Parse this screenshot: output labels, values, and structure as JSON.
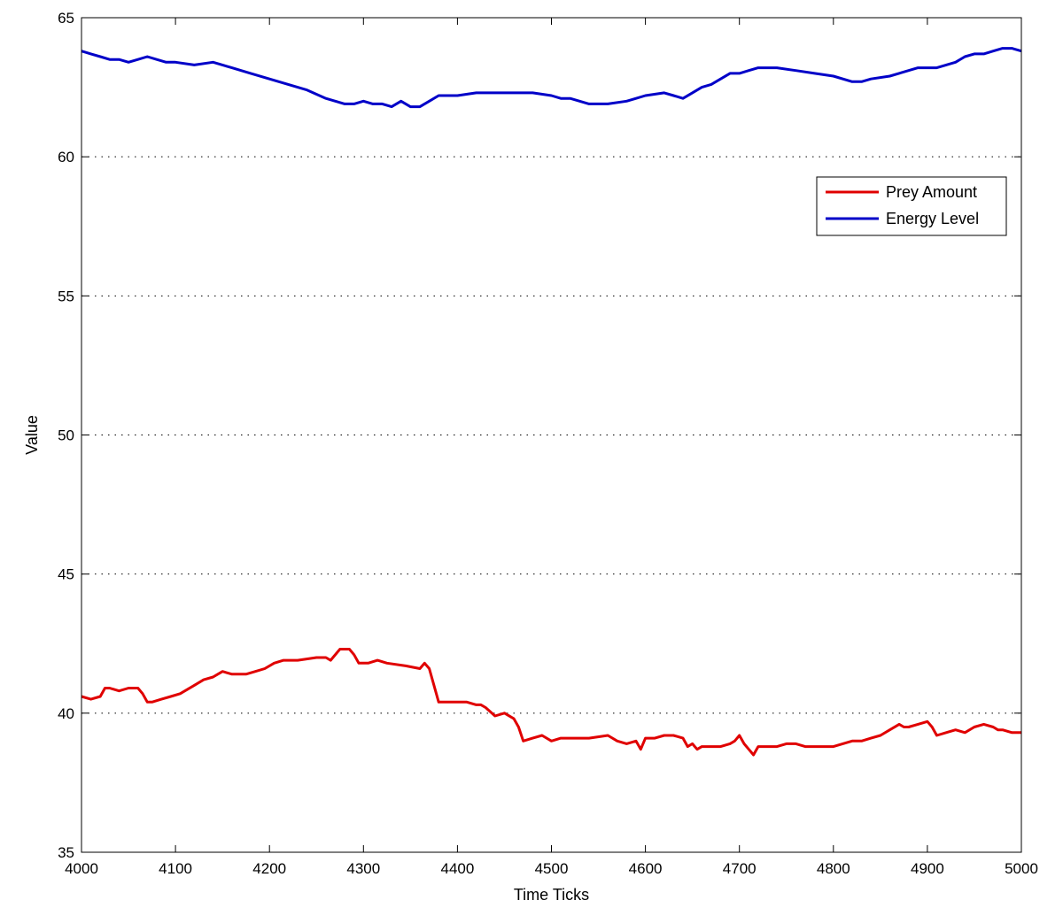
{
  "chart_data": {
    "type": "line",
    "title": "",
    "xlabel": "Time Ticks",
    "ylabel": "Value",
    "xlim": [
      4000,
      5000
    ],
    "ylim": [
      35,
      65
    ],
    "xticks": [
      4000,
      4100,
      4200,
      4300,
      4400,
      4500,
      4600,
      4700,
      4800,
      4900,
      5000
    ],
    "yticks": [
      35,
      40,
      45,
      50,
      55,
      60,
      65
    ],
    "grid": "y-dotted",
    "legend_position": "top-right",
    "colors": {
      "Prey Amount": "#e00000",
      "Energy Level": "#0000c8"
    },
    "series": [
      {
        "name": "Prey Amount",
        "x": [
          4000,
          4010,
          4020,
          4025,
          4030,
          4040,
          4050,
          4060,
          4065,
          4070,
          4075,
          4085,
          4095,
          4105,
          4120,
          4130,
          4140,
          4150,
          4160,
          4175,
          4185,
          4195,
          4205,
          4215,
          4230,
          4250,
          4260,
          4265,
          4275,
          4285,
          4290,
          4295,
          4305,
          4315,
          4325,
          4345,
          4360,
          4365,
          4370,
          4380,
          4395,
          4410,
          4420,
          4425,
          4430,
          4440,
          4450,
          4460,
          4465,
          4470,
          4480,
          4490,
          4500,
          4510,
          4520,
          4540,
          4560,
          4570,
          4580,
          4590,
          4595,
          4600,
          4610,
          4620,
          4630,
          4640,
          4645,
          4650,
          4655,
          4660,
          4670,
          4680,
          4690,
          4695,
          4700,
          4705,
          4710,
          4715,
          4720,
          4730,
          4740,
          4750,
          4760,
          4770,
          4780,
          4800,
          4820,
          4830,
          4840,
          4850,
          4860,
          4870,
          4875,
          4880,
          4890,
          4900,
          4905,
          4910,
          4920,
          4930,
          4940,
          4950,
          4960,
          4970,
          4975,
          4980,
          4990,
          5000
        ],
        "values": [
          40.6,
          40.5,
          40.6,
          40.9,
          40.9,
          40.8,
          40.9,
          40.9,
          40.7,
          40.4,
          40.4,
          40.5,
          40.6,
          40.7,
          41.0,
          41.2,
          41.3,
          41.5,
          41.4,
          41.4,
          41.5,
          41.6,
          41.8,
          41.9,
          41.9,
          42.0,
          42.0,
          41.9,
          42.3,
          42.3,
          42.1,
          41.8,
          41.8,
          41.9,
          41.8,
          41.7,
          41.6,
          41.8,
          41.6,
          40.4,
          40.4,
          40.4,
          40.3,
          40.3,
          40.2,
          39.9,
          40.0,
          39.8,
          39.5,
          39.0,
          39.1,
          39.2,
          39.0,
          39.1,
          39.1,
          39.1,
          39.2,
          39.0,
          38.9,
          39.0,
          38.7,
          39.1,
          39.1,
          39.2,
          39.2,
          39.1,
          38.8,
          38.9,
          38.7,
          38.8,
          38.8,
          38.8,
          38.9,
          39.0,
          39.2,
          38.9,
          38.7,
          38.5,
          38.8,
          38.8,
          38.8,
          38.9,
          38.9,
          38.8,
          38.8,
          38.8,
          39.0,
          39.0,
          39.1,
          39.2,
          39.4,
          39.6,
          39.5,
          39.5,
          39.6,
          39.7,
          39.5,
          39.2,
          39.3,
          39.4,
          39.3,
          39.5,
          39.6,
          39.5,
          39.4,
          39.4,
          39.3,
          39.3
        ]
      },
      {
        "name": "Energy Level",
        "x": [
          4000,
          4010,
          4020,
          4030,
          4040,
          4050,
          4060,
          4070,
          4080,
          4090,
          4100,
          4120,
          4140,
          4160,
          4180,
          4200,
          4220,
          4240,
          4260,
          4270,
          4280,
          4290,
          4300,
          4310,
          4320,
          4330,
          4340,
          4350,
          4360,
          4370,
          4380,
          4390,
          4400,
          4420,
          4440,
          4460,
          4480,
          4500,
          4510,
          4520,
          4540,
          4560,
          4580,
          4590,
          4600,
          4620,
          4630,
          4640,
          4650,
          4660,
          4670,
          4680,
          4690,
          4700,
          4710,
          4720,
          4740,
          4760,
          4780,
          4800,
          4820,
          4830,
          4840,
          4860,
          4880,
          4890,
          4900,
          4910,
          4920,
          4930,
          4940,
          4950,
          4960,
          4970,
          4980,
          4990,
          5000
        ],
        "values": [
          63.8,
          63.7,
          63.6,
          63.5,
          63.5,
          63.4,
          63.5,
          63.6,
          63.5,
          63.4,
          63.4,
          63.3,
          63.4,
          63.2,
          63.0,
          62.8,
          62.6,
          62.4,
          62.1,
          62.0,
          61.9,
          61.9,
          62.0,
          61.9,
          61.9,
          61.8,
          62.0,
          61.8,
          61.8,
          62.0,
          62.2,
          62.2,
          62.2,
          62.3,
          62.3,
          62.3,
          62.3,
          62.2,
          62.1,
          62.1,
          61.9,
          61.9,
          62.0,
          62.1,
          62.2,
          62.3,
          62.2,
          62.1,
          62.3,
          62.5,
          62.6,
          62.8,
          63.0,
          63.0,
          63.1,
          63.2,
          63.2,
          63.1,
          63.0,
          62.9,
          62.7,
          62.7,
          62.8,
          62.9,
          63.1,
          63.2,
          63.2,
          63.2,
          63.3,
          63.4,
          63.6,
          63.7,
          63.7,
          63.8,
          63.9,
          63.9,
          63.8
        ]
      }
    ]
  }
}
